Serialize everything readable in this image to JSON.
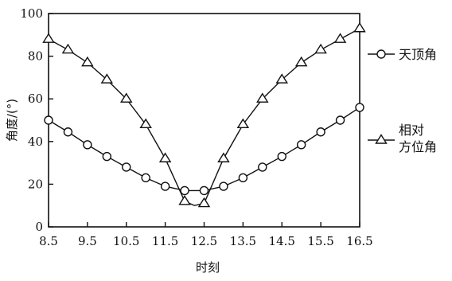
{
  "chart_data": {
    "type": "line",
    "xlabel": "时刻",
    "ylabel": "角度/(°)",
    "xlim": [
      8.5,
      16.5
    ],
    "ylim": [
      0,
      100
    ],
    "x_ticks": [
      "8.5",
      "9.5",
      "10.5",
      "11.5",
      "12.5",
      "13.5",
      "14.5",
      "15.5",
      "16.5"
    ],
    "y_ticks": [
      "0",
      "20",
      "40",
      "60",
      "80",
      "100"
    ],
    "grid": false,
    "legend_placement": "right",
    "x": [
      8.5,
      9,
      9.5,
      10,
      10.5,
      11,
      11.5,
      12,
      12.5,
      13,
      13.5,
      14,
      14.5,
      15,
      15.5,
      16,
      16.5
    ],
    "series": [
      {
        "name": "天顶角",
        "marker": "circle",
        "values": [
          50,
          44.5,
          38.5,
          33,
          28,
          23,
          19,
          17,
          17,
          19,
          23,
          28,
          33,
          38.5,
          44.5,
          50,
          56
        ]
      },
      {
        "name": "相对\n方位角",
        "marker": "triangle",
        "values": [
          88,
          83,
          77,
          69,
          60,
          48,
          32,
          12,
          11,
          32,
          48,
          60,
          69,
          77,
          83,
          88,
          93
        ]
      }
    ],
    "min_annotation": {
      "x": 12.25,
      "y": 10
    }
  }
}
